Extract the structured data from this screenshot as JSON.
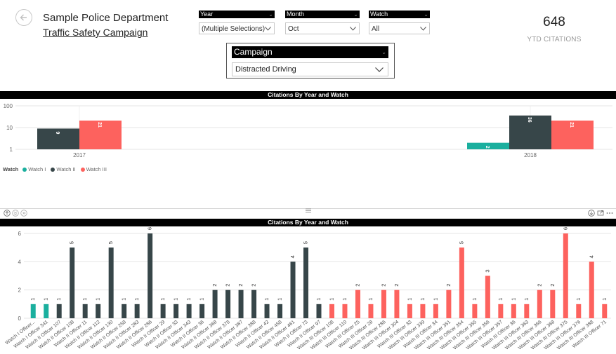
{
  "header": {
    "department": "Sample Police Department",
    "campaign_link": "Traffic Safety Campaign"
  },
  "slicers": {
    "year": {
      "label": "Year",
      "value": "(Multiple Selections)"
    },
    "month": {
      "label": "Month",
      "value": "Oct"
    },
    "watch": {
      "label": "Watch",
      "value": "All"
    },
    "campaign": {
      "label": "Campaign",
      "value": "Distracted Driving"
    }
  },
  "kpi": {
    "value": "648",
    "label": "YTD CITATIONS"
  },
  "colors": {
    "watch1": "#1aaf9e",
    "watch2": "#374649",
    "watch3": "#fd625e",
    "grid": "#e6e6e6"
  },
  "icons": [
    "back-arrow-icon",
    "chevron-down-icon",
    "drill-up-icon",
    "drill-down-icon",
    "expand-icon",
    "focus-mode-icon",
    "more-options-icon"
  ],
  "chart_data": [
    {
      "type": "bar",
      "title": "Citations By  Year and Watch",
      "scale": "log",
      "yticks": [
        "100",
        "10",
        "1"
      ],
      "ylim": [
        1,
        100
      ],
      "categories": [
        "2017",
        "2018"
      ],
      "legend": {
        "title": "Watch",
        "placement": "bottom-left",
        "entries": [
          "Watch I",
          "Watch II",
          "Watch III"
        ]
      },
      "series": [
        {
          "name": "Watch I",
          "values": [
            null,
            2
          ],
          "labels": [
            "",
            "2"
          ]
        },
        {
          "name": "Watch II",
          "values": [
            9,
            36
          ],
          "labels": [
            "9",
            "36"
          ]
        },
        {
          "name": "Watch III",
          "values": [
            21,
            21
          ],
          "labels": [
            "21",
            "21"
          ]
        }
      ]
    },
    {
      "type": "bar",
      "title": "Citations By  Year and Watch",
      "yticks": [
        "6",
        "4",
        "2",
        "0"
      ],
      "ylim": [
        0,
        6
      ],
      "categories": [
        "Watch I Officer...",
        "Watch I Officer 341",
        "Watch II Officer 107",
        "Watch II Officer 108",
        "Watch II Officer 11",
        "Watch II Officer 112",
        "Watch II Officer 130",
        "Watch II Officer 258",
        "Watch II Officer 283",
        "Watch II Officer 286",
        "Watch II Officer 29",
        "Watch II Officer 33",
        "Watch II Officer 343",
        "Watch II Officer 36",
        "Watch II Officer 368",
        "Watch II Officer 378",
        "Watch II Officer 387",
        "Watch II Officer 388",
        "Watch II Officer 42",
        "Watch II Officer 458",
        "Watch II Officer 461",
        "Watch II Officer 73",
        "Watch II Officer 97",
        "Watch III Officer 108",
        "Watch III Officer 110",
        "Watch III Officer 25",
        "Watch III Officer 28",
        "Watch III Officer 286",
        "Watch III Officer 304",
        "Watch III Officer 33",
        "Watch III Officer 339",
        "Watch III Officer 34",
        "Watch III Officer 351",
        "Watch III Officer 354",
        "Watch III Officer 355",
        "Watch III Officer 356",
        "Watch III Officer 357",
        "Watch III Officer 36",
        "Watch III Officer 363",
        "Watch III Officer 366",
        "Watch III Officer 368",
        "Watch III Officer 375",
        "Watch III Officer 376",
        "Watch III Officer 388",
        "Watch III Officer 71"
      ],
      "values": [
        1,
        1,
        1,
        5,
        1,
        1,
        5,
        1,
        1,
        6,
        1,
        1,
        1,
        1,
        2,
        2,
        2,
        2,
        1,
        1,
        4,
        5,
        1,
        1,
        1,
        2,
        1,
        2,
        2,
        1,
        1,
        1,
        2,
        5,
        1,
        3,
        1,
        1,
        1,
        2,
        2,
        6,
        1,
        4,
        1
      ],
      "groups": [
        "Watch I",
        "Watch I",
        "Watch II",
        "Watch II",
        "Watch II",
        "Watch II",
        "Watch II",
        "Watch II",
        "Watch II",
        "Watch II",
        "Watch II",
        "Watch II",
        "Watch II",
        "Watch II",
        "Watch II",
        "Watch II",
        "Watch II",
        "Watch II",
        "Watch II",
        "Watch II",
        "Watch II",
        "Watch II",
        "Watch II",
        "Watch III",
        "Watch III",
        "Watch III",
        "Watch III",
        "Watch III",
        "Watch III",
        "Watch III",
        "Watch III",
        "Watch III",
        "Watch III",
        "Watch III",
        "Watch III",
        "Watch III",
        "Watch III",
        "Watch III",
        "Watch III",
        "Watch III",
        "Watch III",
        "Watch III",
        "Watch III",
        "Watch III",
        "Watch III"
      ]
    }
  ]
}
